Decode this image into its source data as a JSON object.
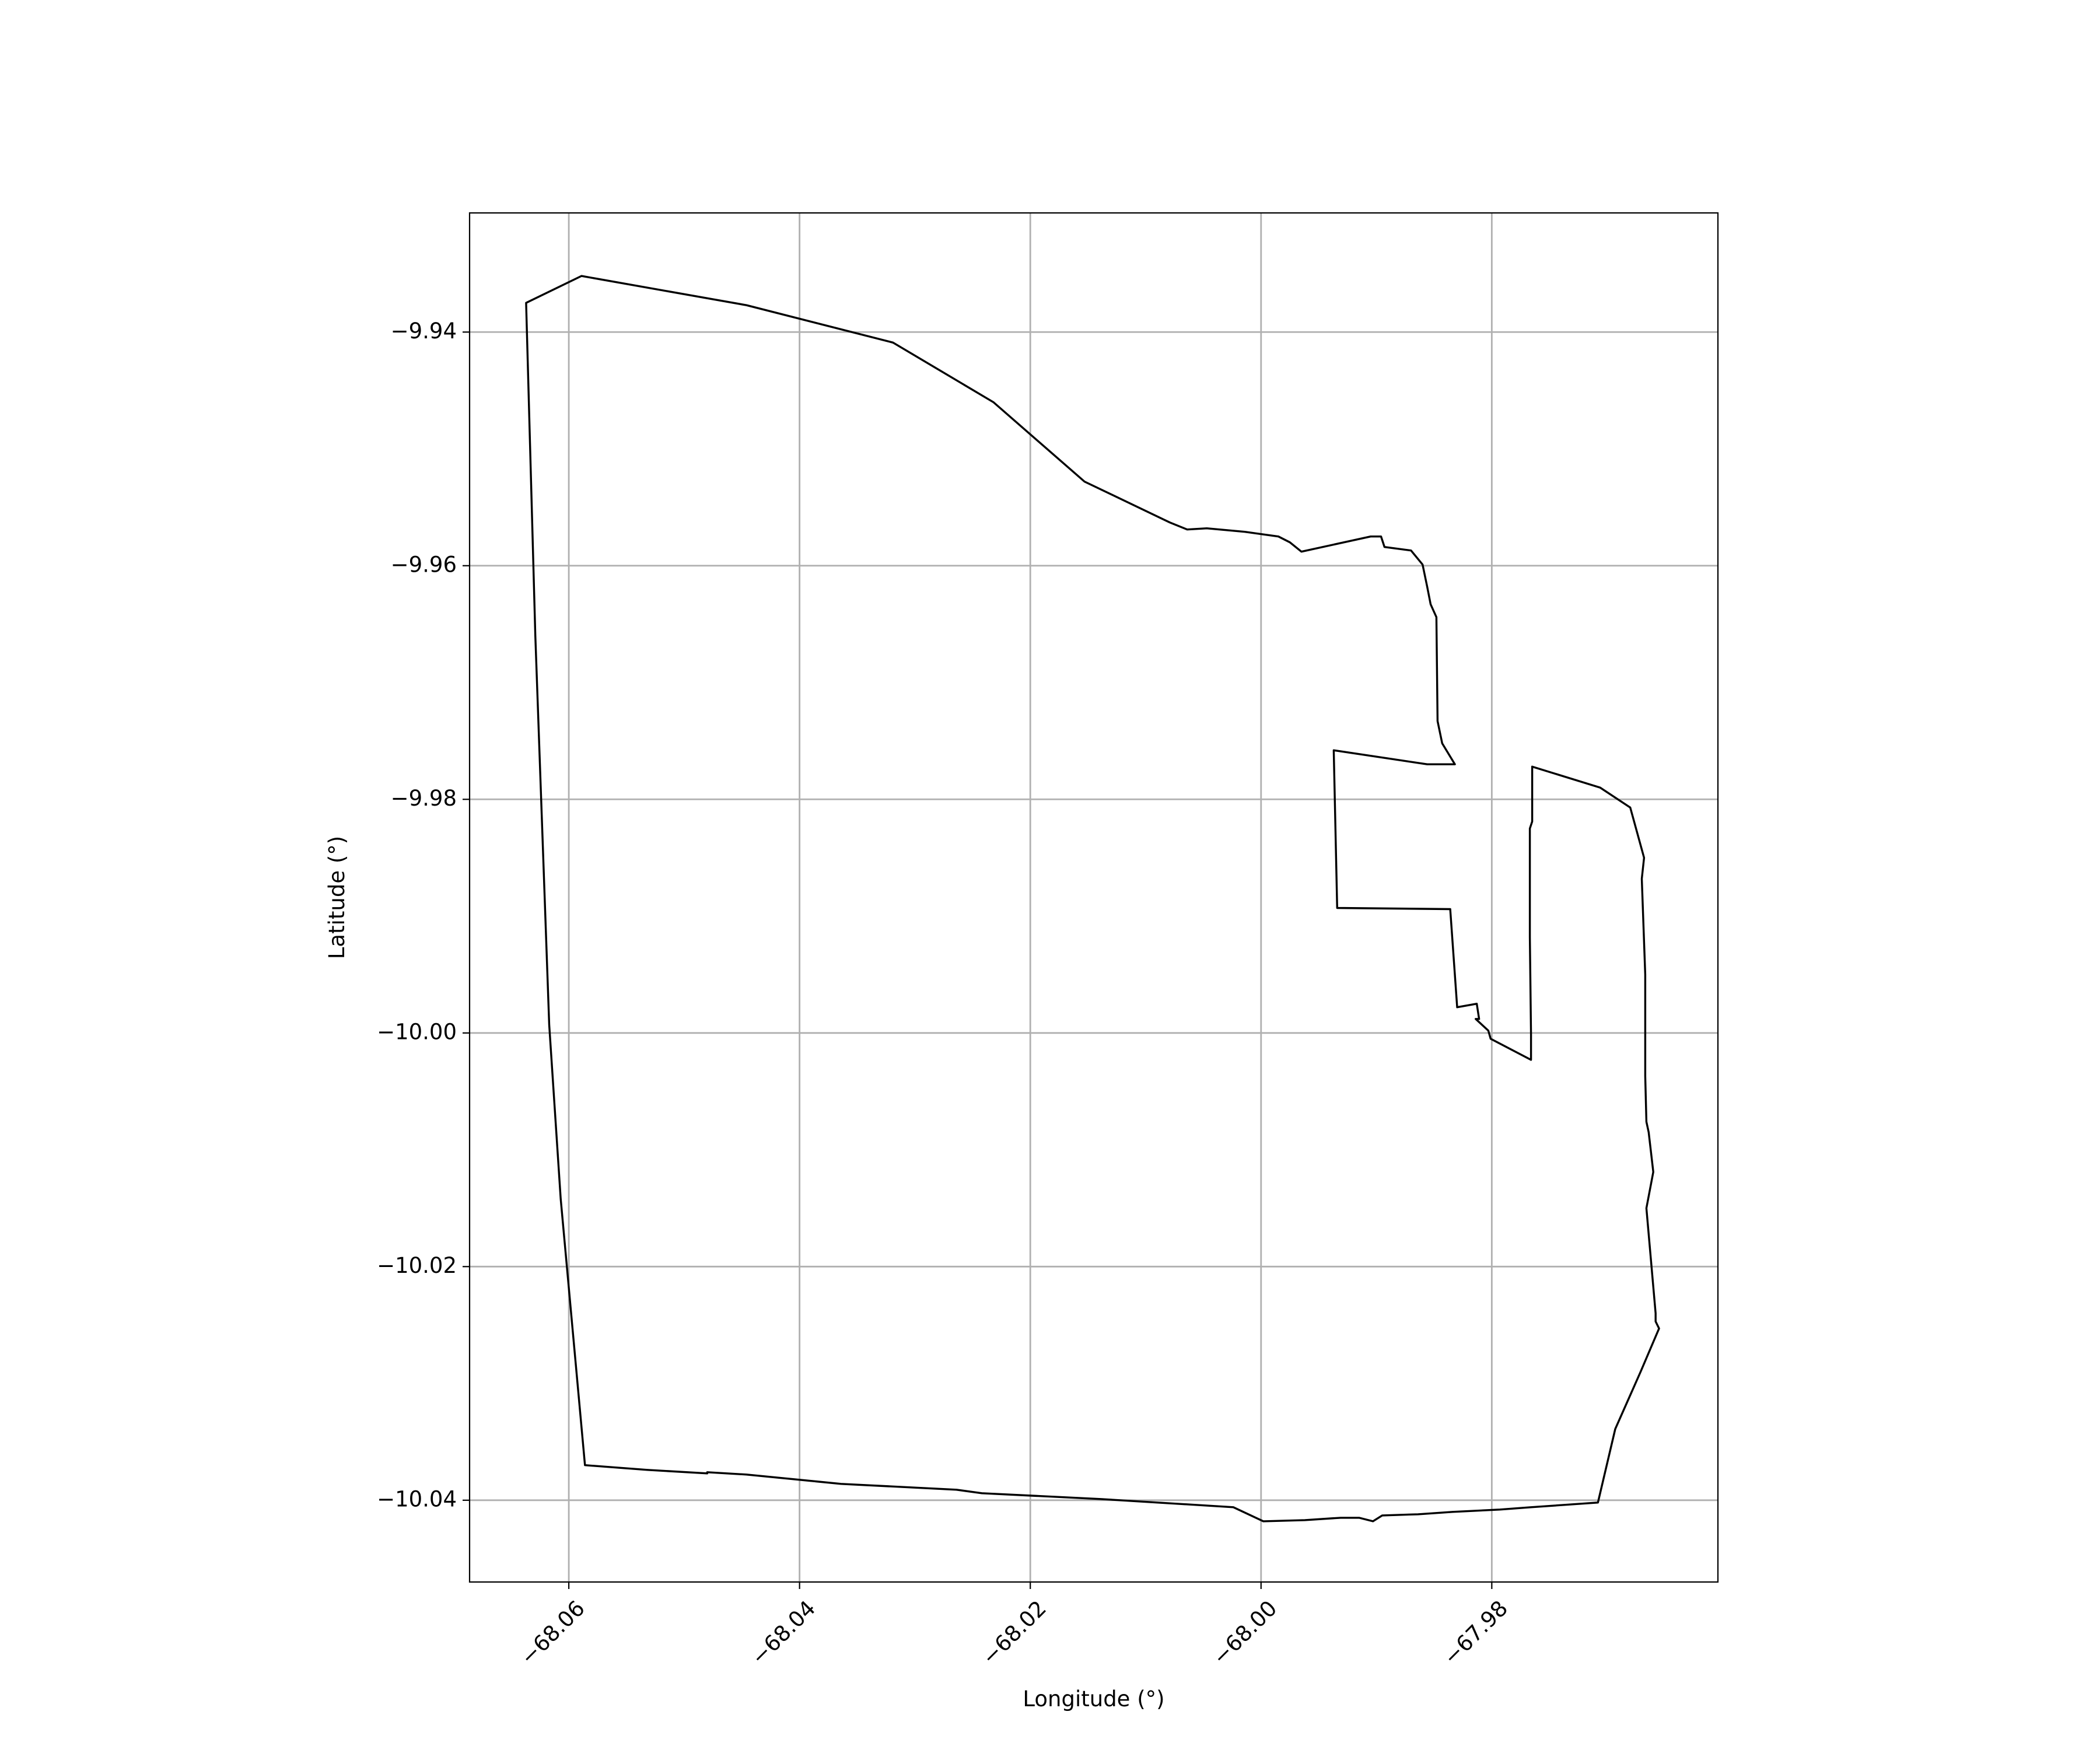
{
  "chart_data": {
    "type": "line",
    "title": "",
    "xlabel": "Longitude (°)",
    "ylabel": "Latitude (°)",
    "xlim": [
      -68.0686,
      -67.9604
    ],
    "ylim": [
      -10.047,
      -9.9298
    ],
    "grid": true,
    "xticks": [
      -68.06,
      -68.04,
      -68.02,
      -68.0,
      -67.98
    ],
    "xtick_labels": [
      "−68.06",
      "−68.04",
      "−68.02",
      "−68.00",
      "−67.98"
    ],
    "yticks": [
      -9.94,
      -9.96,
      -9.98,
      -10.0,
      -10.02,
      -10.04
    ],
    "ytick_labels": [
      "−9.94",
      "−9.96",
      "−9.98",
      "−10.00",
      "−10.02",
      "−10.04"
    ],
    "series": [
      {
        "stroke": "#000000",
        "points": [
          [
            -68.0637,
            -9.9375
          ],
          [
            -68.0589,
            -9.9352
          ],
          [
            -68.0446,
            -9.9377
          ],
          [
            -68.0319,
            -9.9409
          ],
          [
            -68.0232,
            -9.946
          ],
          [
            -68.0153,
            -9.9528
          ],
          [
            -68.0079,
            -9.9563
          ],
          [
            -68.0064,
            -9.9569
          ],
          [
            -68.0047,
            -9.9568
          ],
          [
            -68.0014,
            -9.9571
          ],
          [
            -67.9985,
            -9.9575
          ],
          [
            -67.9975,
            -9.958
          ],
          [
            -67.9965,
            -9.9588
          ],
          [
            -67.9905,
            -9.9575
          ],
          [
            -67.9896,
            -9.9575
          ],
          [
            -67.9893,
            -9.9584
          ],
          [
            -67.987,
            -9.9587
          ],
          [
            -67.986,
            -9.9599
          ],
          [
            -67.9856,
            -9.9618
          ],
          [
            -67.9853,
            -9.9633
          ],
          [
            -67.9848,
            -9.9644
          ],
          [
            -67.9847,
            -9.9733
          ],
          [
            -67.9843,
            -9.9752
          ],
          [
            -67.9832,
            -9.977
          ],
          [
            -67.9856,
            -9.977
          ],
          [
            -67.9937,
            -9.9758
          ],
          [
            -67.9934,
            -9.9893
          ],
          [
            -67.9836,
            -9.9894
          ],
          [
            -67.983,
            -9.9978
          ],
          [
            -67.9813,
            -9.9975
          ],
          [
            -67.9811,
            -9.9988
          ],
          [
            -67.9814,
            -9.9988
          ],
          [
            -67.9803,
            -9.9998
          ],
          [
            -67.9801,
            -10.0005
          ],
          [
            -67.9766,
            -10.0023
          ],
          [
            -67.9766,
            -10.0001
          ],
          [
            -67.9767,
            -9.9918
          ],
          [
            -67.9767,
            -9.9825
          ],
          [
            -67.9765,
            -9.9819
          ],
          [
            -67.9765,
            -9.9772
          ],
          [
            -67.9706,
            -9.979
          ],
          [
            -67.968,
            -9.9807
          ],
          [
            -67.9668,
            -9.985
          ],
          [
            -67.967,
            -9.9868
          ],
          [
            -67.9667,
            -9.995
          ],
          [
            -67.9667,
            -10.0037
          ],
          [
            -67.9666,
            -10.0076
          ],
          [
            -67.9664,
            -10.0085
          ],
          [
            -67.966,
            -10.0119
          ],
          [
            -67.9666,
            -10.015
          ],
          [
            -67.9658,
            -10.024
          ],
          [
            -67.9658,
            -10.0247
          ],
          [
            -67.9655,
            -10.0253
          ],
          [
            -67.9671,
            -10.029
          ],
          [
            -67.9693,
            -10.0339
          ],
          [
            -67.9708,
            -10.0402
          ],
          [
            -67.9766,
            -10.0406
          ],
          [
            -67.9793,
            -10.0408
          ],
          [
            -67.9834,
            -10.041
          ],
          [
            -67.9864,
            -10.0412
          ],
          [
            -67.9895,
            -10.0413
          ],
          [
            -67.9903,
            -10.0418
          ],
          [
            -67.9915,
            -10.0415
          ],
          [
            -67.9931,
            -10.0415
          ],
          [
            -67.9962,
            -10.0417
          ],
          [
            -67.9998,
            -10.0418
          ],
          [
            -68.0024,
            -10.0406
          ],
          [
            -68.0139,
            -10.0399
          ],
          [
            -68.0242,
            -10.0394
          ],
          [
            -68.0264,
            -10.0391
          ],
          [
            -68.0364,
            -10.0386
          ],
          [
            -68.0446,
            -10.0378
          ],
          [
            -68.048,
            -10.0376
          ],
          [
            -68.048,
            -10.0377
          ],
          [
            -68.0532,
            -10.0374
          ],
          [
            -68.0586,
            -10.037
          ],
          [
            -68.0607,
            -10.0142
          ],
          [
            -68.0617,
            -9.9993
          ],
          [
            -68.062,
            -9.9909
          ],
          [
            -68.0629,
            -9.966
          ],
          [
            -68.0637,
            -9.9375
          ]
        ]
      }
    ]
  }
}
